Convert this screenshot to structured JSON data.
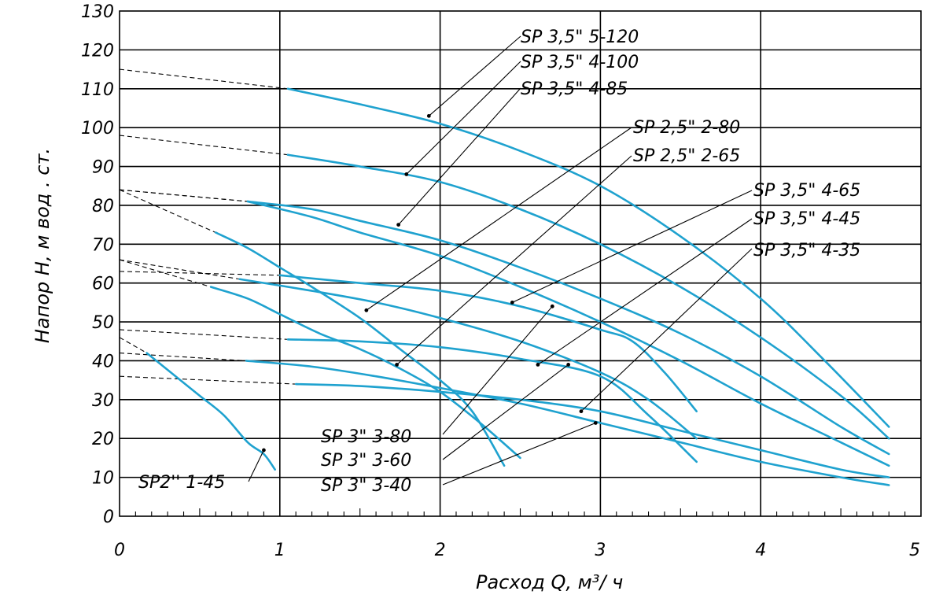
{
  "chart_data": {
    "type": "line",
    "xlabel": "Расход  Q,  м³/ ч",
    "ylabel": "Напор  H,  м вод . ст.",
    "xlim": [
      0,
      5
    ],
    "ylim": [
      0,
      130
    ],
    "x_ticks": [
      "0",
      "1",
      "2",
      "3",
      "4",
      "5"
    ],
    "y_ticks": [
      "0",
      "10",
      "20",
      "30",
      "40",
      "50",
      "60",
      "70",
      "80",
      "90",
      "100",
      "110",
      "120",
      "130"
    ],
    "grid": true,
    "series": [
      {
        "name": "SP 3,5\" 5-120",
        "ext_start": [
          0,
          115
        ],
        "points": [
          [
            1.05,
            110
          ],
          [
            1.5,
            106
          ],
          [
            2.0,
            101
          ],
          [
            2.5,
            94
          ],
          [
            3.0,
            85
          ],
          [
            3.5,
            72
          ],
          [
            4.0,
            56
          ],
          [
            4.4,
            40
          ],
          [
            4.8,
            23
          ]
        ],
        "marker": [
          1.93,
          103
        ]
      },
      {
        "name": "SP 3,5\" 4-100",
        "ext_start": [
          0,
          98
        ],
        "points": [
          [
            1.05,
            93
          ],
          [
            1.5,
            90
          ],
          [
            2.0,
            86
          ],
          [
            2.5,
            79
          ],
          [
            3.0,
            70
          ],
          [
            3.5,
            59
          ],
          [
            4.0,
            46
          ],
          [
            4.5,
            31
          ],
          [
            4.8,
            20
          ]
        ],
        "marker": [
          1.79,
          88
        ]
      },
      {
        "name": "SP 3,5\" 4-85",
        "ext_start": [
          0,
          84
        ],
        "points": [
          [
            0.8,
            81
          ],
          [
            1.2,
            79
          ],
          [
            1.5,
            76
          ],
          [
            2.0,
            71
          ],
          [
            2.5,
            64
          ],
          [
            3.0,
            56
          ],
          [
            3.5,
            47
          ],
          [
            4.0,
            36
          ],
          [
            4.5,
            23
          ],
          [
            4.8,
            16
          ]
        ],
        "marker": [
          1.74,
          75
        ]
      },
      {
        "name": "SP 2,5\" 2-80",
        "ext_start": [
          0,
          84
        ],
        "points": [
          [
            0.6,
            73
          ],
          [
            0.8,
            69
          ],
          [
            1.0,
            64
          ],
          [
            1.2,
            59
          ],
          [
            1.5,
            51
          ],
          [
            1.75,
            43
          ],
          [
            2.0,
            35
          ],
          [
            2.2,
            27
          ],
          [
            2.4,
            13
          ]
        ],
        "marker": [
          1.54,
          53
        ]
      },
      {
        "name": "SP 2,5\" 2-65",
        "ext_start": [
          0,
          66
        ],
        "points": [
          [
            0.57,
            59
          ],
          [
            0.8,
            56
          ],
          [
            1.0,
            52
          ],
          [
            1.25,
            47
          ],
          [
            1.5,
            43
          ],
          [
            1.75,
            38
          ],
          [
            2.0,
            32
          ],
          [
            2.25,
            24
          ],
          [
            2.5,
            15
          ]
        ],
        "marker": [
          1.73,
          39
        ]
      },
      {
        "name": "SP 3,5\" 4-65",
        "ext_start": [
          0,
          84
        ],
        "points": [
          [
            0.8,
            81
          ],
          [
            1.2,
            77
          ],
          [
            1.5,
            73
          ],
          [
            2.0,
            67
          ],
          [
            2.5,
            59
          ],
          [
            3.0,
            50
          ],
          [
            3.5,
            40
          ],
          [
            4.0,
            29
          ],
          [
            4.5,
            19
          ],
          [
            4.8,
            13
          ]
        ],
        "marker": [
          2.45,
          55
        ]
      },
      {
        "name": "SP 3,5\" 4-45",
        "ext_start": [
          0,
          63
        ],
        "points": [
          [
            1.0,
            62
          ],
          [
            1.5,
            60
          ],
          [
            2.0,
            58
          ],
          [
            2.5,
            54
          ],
          [
            3.0,
            48
          ],
          [
            3.2,
            45
          ],
          [
            3.4,
            37
          ],
          [
            3.6,
            27
          ]
        ],
        "marker": [
          2.61,
          39
        ]
      },
      {
        "name": "SP 3,5\" 4-35",
        "ext_start": [
          0,
          66
        ],
        "points": [
          [
            0.75,
            61
          ],
          [
            1.2,
            58
          ],
          [
            1.6,
            55
          ],
          [
            2.0,
            51
          ],
          [
            2.5,
            45
          ],
          [
            3.0,
            37
          ],
          [
            3.3,
            30
          ],
          [
            3.6,
            20
          ]
        ],
        "marker": [
          2.88,
          27
        ]
      },
      {
        "name": "SP 3\" 3-80",
        "ext_start": [
          0,
          48
        ],
        "points": [
          [
            1.05,
            45.5
          ],
          [
            1.5,
            45
          ],
          [
            2.0,
            43.5
          ],
          [
            2.5,
            40.5
          ],
          [
            3.0,
            36
          ],
          [
            3.3,
            26
          ],
          [
            3.6,
            14
          ]
        ],
        "marker": [
          2.7,
          54
        ]
      },
      {
        "name": "SP 3\" 3-60",
        "ext_start": [
          0,
          42
        ],
        "points": [
          [
            0.79,
            40
          ],
          [
            1.2,
            38.5
          ],
          [
            1.6,
            36
          ],
          [
            2.0,
            33
          ],
          [
            2.5,
            29
          ],
          [
            3.0,
            24
          ],
          [
            3.5,
            19
          ],
          [
            4.0,
            14
          ],
          [
            4.5,
            10
          ],
          [
            4.8,
            8
          ]
        ],
        "marker": [
          2.8,
          39
        ]
      },
      {
        "name": "SP 3\" 3-40",
        "ext_start": [
          0,
          36
        ],
        "points": [
          [
            1.1,
            34
          ],
          [
            1.5,
            33.5
          ],
          [
            2.0,
            32
          ],
          [
            2.5,
            30
          ],
          [
            3.0,
            27
          ],
          [
            3.5,
            22
          ],
          [
            4.0,
            17
          ],
          [
            4.5,
            12
          ],
          [
            4.8,
            10
          ]
        ],
        "marker": [
          2.97,
          24
        ]
      },
      {
        "name": "SP2'' 1-45",
        "ext_start": [
          0,
          46
        ],
        "points": [
          [
            0.17,
            42
          ],
          [
            0.35,
            36
          ],
          [
            0.5,
            31
          ],
          [
            0.65,
            26
          ],
          [
            0.8,
            19
          ],
          [
            0.9,
            16
          ],
          [
            0.97,
            12
          ]
        ],
        "marker": [
          0.9,
          17
        ]
      }
    ],
    "labels": [
      {
        "text": "SP 3,5\" 5-120"
      },
      {
        "text": "SP 3,5\" 4-100"
      },
      {
        "text": "SP 3,5\" 4-85"
      },
      {
        "text": "SP 2,5\" 2-80"
      },
      {
        "text": "SP 2,5\" 2-65"
      },
      {
        "text": "SP 3,5\" 4-65"
      },
      {
        "text": "SP 3,5\" 4-45"
      },
      {
        "text": "SP 3,5\" 4-35"
      },
      {
        "text": "SP 3\" 3-80"
      },
      {
        "text": "SP 3\" 3-60"
      },
      {
        "text": "SP 3\" 3-40"
      },
      {
        "text": "SP2'' 1-45"
      }
    ]
  }
}
